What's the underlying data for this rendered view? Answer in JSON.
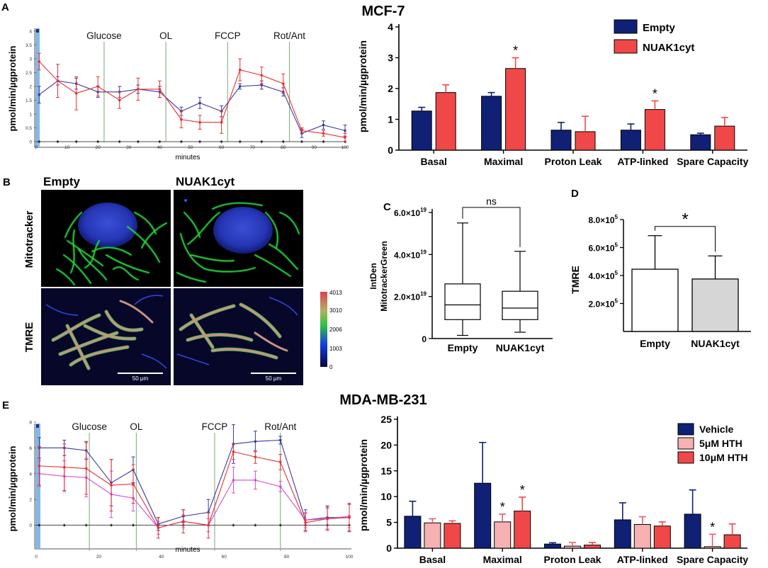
{
  "figure": {
    "title_top": "MCF-7",
    "title_bottom": "MDA-MB-231",
    "panel_labels": [
      "A",
      "B",
      "C",
      "D",
      "E"
    ]
  },
  "colors": {
    "empty": "#102075",
    "nuak": "#f04848",
    "vehicle": "#102075",
    "hth5": "#f7b1b3",
    "hth10": "#f04848",
    "line_blue": "#3a3aa0",
    "line_red": "#e83030",
    "line_magenta": "#d54bd5",
    "injection": "#8fb48f",
    "baseline": "#111111",
    "sidebar": "#86b8e4"
  },
  "microscopy": {
    "col_labels": [
      "Empty",
      "NUAK1cyt"
    ],
    "row_labels": [
      "Mitotracker",
      "TMRE"
    ],
    "colorbar_ticks": [
      "4013",
      "3010",
      "2006",
      "1003",
      "0"
    ],
    "scale_label": "50 μm"
  },
  "chart_data": [
    {
      "id": "A-trace",
      "type": "line",
      "title": "",
      "xlabel": "minutes",
      "ylabel": "pmol/min/µgprotein",
      "xlim": [
        0,
        100
      ],
      "ylim": [
        0,
        4
      ],
      "xticks": [
        0,
        10,
        20,
        30,
        40,
        50,
        60,
        70,
        80,
        90,
        100
      ],
      "yticks": [
        0,
        0.5,
        1,
        1.5,
        2,
        2.5,
        3,
        3.5,
        4
      ],
      "ytick_labels": [
        "0",
        "0.5",
        "1",
        "1.5",
        "2",
        "2.5",
        "3",
        "3.5",
        "4"
      ],
      "injections": [
        {
          "label": "Glucose",
          "x": 22
        },
        {
          "label": "OL",
          "x": 42
        },
        {
          "label": "FCCP",
          "x": 62
        },
        {
          "label": "Rot/Ant",
          "x": 82
        }
      ],
      "x": [
        1,
        7,
        13,
        20,
        27,
        33,
        40,
        47,
        53,
        60,
        66,
        73,
        80,
        86,
        93,
        100
      ],
      "series": [
        {
          "name": "Empty",
          "color_key": "line_blue",
          "values": [
            1.7,
            2.2,
            2.1,
            1.8,
            1.8,
            1.9,
            1.8,
            1.1,
            1.4,
            1.1,
            2.0,
            2.05,
            1.8,
            0.3,
            0.6,
            0.4
          ],
          "err": [
            0.3,
            0.15,
            0.2,
            0.2,
            0.2,
            0.15,
            0.2,
            0.15,
            0.2,
            0.2,
            0.1,
            0.15,
            0.15,
            0.15,
            0.15,
            0.2
          ]
        },
        {
          "name": "NUAK1cyt",
          "color_key": "line_red",
          "values": [
            2.9,
            2.2,
            1.75,
            2.0,
            1.5,
            1.9,
            1.9,
            0.8,
            0.7,
            0.7,
            2.6,
            2.4,
            2.1,
            0.4,
            0.3,
            0.15
          ],
          "err": [
            0.3,
            0.6,
            0.6,
            0.35,
            0.3,
            0.4,
            0.3,
            0.3,
            0.25,
            0.4,
            0.4,
            0.3,
            0.35,
            0.1,
            0.1,
            0.15
          ]
        }
      ],
      "baseline_y": 0
    },
    {
      "id": "A-bars",
      "type": "bar",
      "title": "MCF-7",
      "ylabel": "pmol/min/µgprotein",
      "ylim": [
        0,
        4
      ],
      "yticks": [
        0,
        1,
        2,
        3,
        4
      ],
      "categories": [
        "Basal",
        "Maximal",
        "Proton Leak",
        "ATP-linked",
        "Spare Capacity"
      ],
      "series": [
        {
          "name": "Empty",
          "color_key": "empty",
          "values": [
            1.27,
            1.75,
            0.65,
            0.65,
            0.5
          ],
          "err": [
            0.12,
            0.12,
            0.25,
            0.2,
            0.05
          ]
        },
        {
          "name": "NUAK1cyt",
          "color_key": "nuak",
          "values": [
            1.87,
            2.65,
            0.6,
            1.32,
            0.78
          ],
          "err": [
            0.25,
            0.35,
            0.5,
            0.28,
            0.28
          ]
        }
      ],
      "significance": [
        {
          "category": "Maximal",
          "series": "NUAK1cyt",
          "label": "*"
        },
        {
          "category": "ATP-linked",
          "series": "NUAK1cyt",
          "label": "*"
        }
      ],
      "legend": "top-right"
    },
    {
      "id": "C-box",
      "type": "box",
      "ylabel": "IntDen\nMitotrackerGreen",
      "ylabel_lines": [
        "IntDen",
        "MitotrackerGreen"
      ],
      "ylim": [
        0,
        6e+19
      ],
      "yticks": [
        0,
        2e+19,
        4e+19,
        6e+19
      ],
      "ytick_labels": [
        {
          "mantissa": "0",
          "exp": ""
        },
        {
          "mantissa": "2.0×10",
          "exp": "19"
        },
        {
          "mantissa": "4.0×10",
          "exp": "19"
        },
        {
          "mantissa": "6.0×10",
          "exp": "19"
        }
      ],
      "categories": [
        "Empty",
        "NUAK1cyt"
      ],
      "boxes": [
        {
          "min": 1.5e+18,
          "q1": 9e+18,
          "median": 1.6e+19,
          "q3": 2.6e+19,
          "max": 5.5e+19
        },
        {
          "min": 3e+18,
          "q1": 9e+18,
          "median": 1.45e+19,
          "q3": 2.25e+19,
          "max": 4.15e+19
        }
      ],
      "significance": "ns"
    },
    {
      "id": "D-bars",
      "type": "bar",
      "ylabel": "TMRE",
      "ylim": [
        0,
        800000.0
      ],
      "yticks": [
        200000.0,
        400000.0,
        600000.0,
        800000.0
      ],
      "ytick_labels": [
        {
          "mantissa": "2.0×10",
          "exp": "5"
        },
        {
          "mantissa": "4.0×10",
          "exp": "5"
        },
        {
          "mantissa": "6.0×10",
          "exp": "5"
        },
        {
          "mantissa": "8.0×10",
          "exp": "5"
        }
      ],
      "categories": [
        "Empty",
        "NUAK1cyt"
      ],
      "values": [
        445000.0,
        375000.0
      ],
      "err": [
        240000.0,
        165000.0
      ],
      "fills": [
        "#ffffff",
        "#d6d6d6"
      ],
      "significance": "*"
    },
    {
      "id": "E-trace",
      "type": "line",
      "xlabel": "minutes",
      "ylabel": "pmol/min/µgprotein",
      "xlim": [
        0,
        100
      ],
      "ylim": [
        -2,
        8
      ],
      "xticks": [
        0,
        20,
        40,
        60,
        80,
        100
      ],
      "yticks": [
        0,
        2,
        4,
        6,
        8
      ],
      "injections": [
        {
          "label": "Glucose",
          "x": 17
        },
        {
          "label": "OL",
          "x": 32
        },
        {
          "label": "FCCP",
          "x": 57
        },
        {
          "label": "Rot/Ant",
          "x": 78
        }
      ],
      "x": [
        1,
        9,
        16,
        24,
        31,
        39,
        47,
        55,
        63,
        70,
        78,
        86,
        93,
        100
      ],
      "series": [
        {
          "name": "Vehicle",
          "color_key": "line_blue",
          "values": [
            6.0,
            6.0,
            5.8,
            3.3,
            4.3,
            0.1,
            0.7,
            1.0,
            6.3,
            6.5,
            6.6,
            0.4,
            0.6,
            0.6
          ],
          "err": [
            0.8,
            0.6,
            0.7,
            1.8,
            1.0,
            0.5,
            0.5,
            1.0,
            1.5,
            0.8,
            0.3,
            0.8,
            0.9,
            1.1
          ]
        },
        {
          "name": "5µM HTH",
          "color_key": "line_magenta",
          "values": [
            4.0,
            3.8,
            3.7,
            2.4,
            2.1,
            -0.2,
            0.3,
            0.0,
            3.5,
            3.5,
            3.0,
            0.4,
            0.5,
            0.7
          ],
          "err": [
            1.0,
            1.2,
            1.5,
            1.8,
            1.0,
            0.5,
            0.5,
            0.5,
            1.0,
            0.7,
            0.4,
            0.6,
            0.8,
            0.9
          ]
        },
        {
          "name": "10µM HTH",
          "color_key": "line_red",
          "values": [
            4.6,
            4.5,
            4.4,
            3.1,
            3.2,
            -0.2,
            0.3,
            0.0,
            5.7,
            5.3,
            4.9,
            0.2,
            0.5,
            0.6
          ],
          "err": [
            1.5,
            1.8,
            2.0,
            2.0,
            1.5,
            0.8,
            0.9,
            1.0,
            0.6,
            0.5,
            0.6,
            0.7,
            0.9,
            1.0
          ]
        }
      ],
      "baseline_y": 0
    },
    {
      "id": "E-bars",
      "type": "bar",
      "title": "MDA-MB-231",
      "ylabel": "pmol/min/µgprotein",
      "ylim": [
        0,
        25
      ],
      "yticks": [
        0,
        5,
        10,
        15,
        20,
        25
      ],
      "categories": [
        "Basal",
        "Maximal",
        "Proton Leak",
        "ATP-linked",
        "Spare Capacity"
      ],
      "series": [
        {
          "name": "Vehicle",
          "color_key": "vehicle",
          "values": [
            6.2,
            12.6,
            0.8,
            5.5,
            6.6
          ],
          "err": [
            2.9,
            7.9,
            0.25,
            3.3,
            4.7
          ]
        },
        {
          "name": "5μM HTH",
          "color_key": "hth5",
          "values": [
            4.9,
            5.1,
            0.4,
            4.6,
            0.3
          ],
          "err": [
            0.8,
            1.5,
            0.7,
            1.5,
            2.4
          ]
        },
        {
          "name": "10μM HTH",
          "color_key": "hth10",
          "values": [
            4.8,
            7.2,
            0.6,
            4.3,
            2.6
          ],
          "err": [
            0.5,
            2.7,
            0.5,
            0.8,
            2.1
          ]
        }
      ],
      "significance": [
        {
          "category": "Maximal",
          "series": "5μM HTH",
          "label": "*"
        },
        {
          "category": "Maximal",
          "series": "10μM HTH",
          "label": "*"
        },
        {
          "category": "Spare Capacity",
          "series": "5μM HTH",
          "label": "*"
        }
      ],
      "legend": "top-right"
    }
  ]
}
